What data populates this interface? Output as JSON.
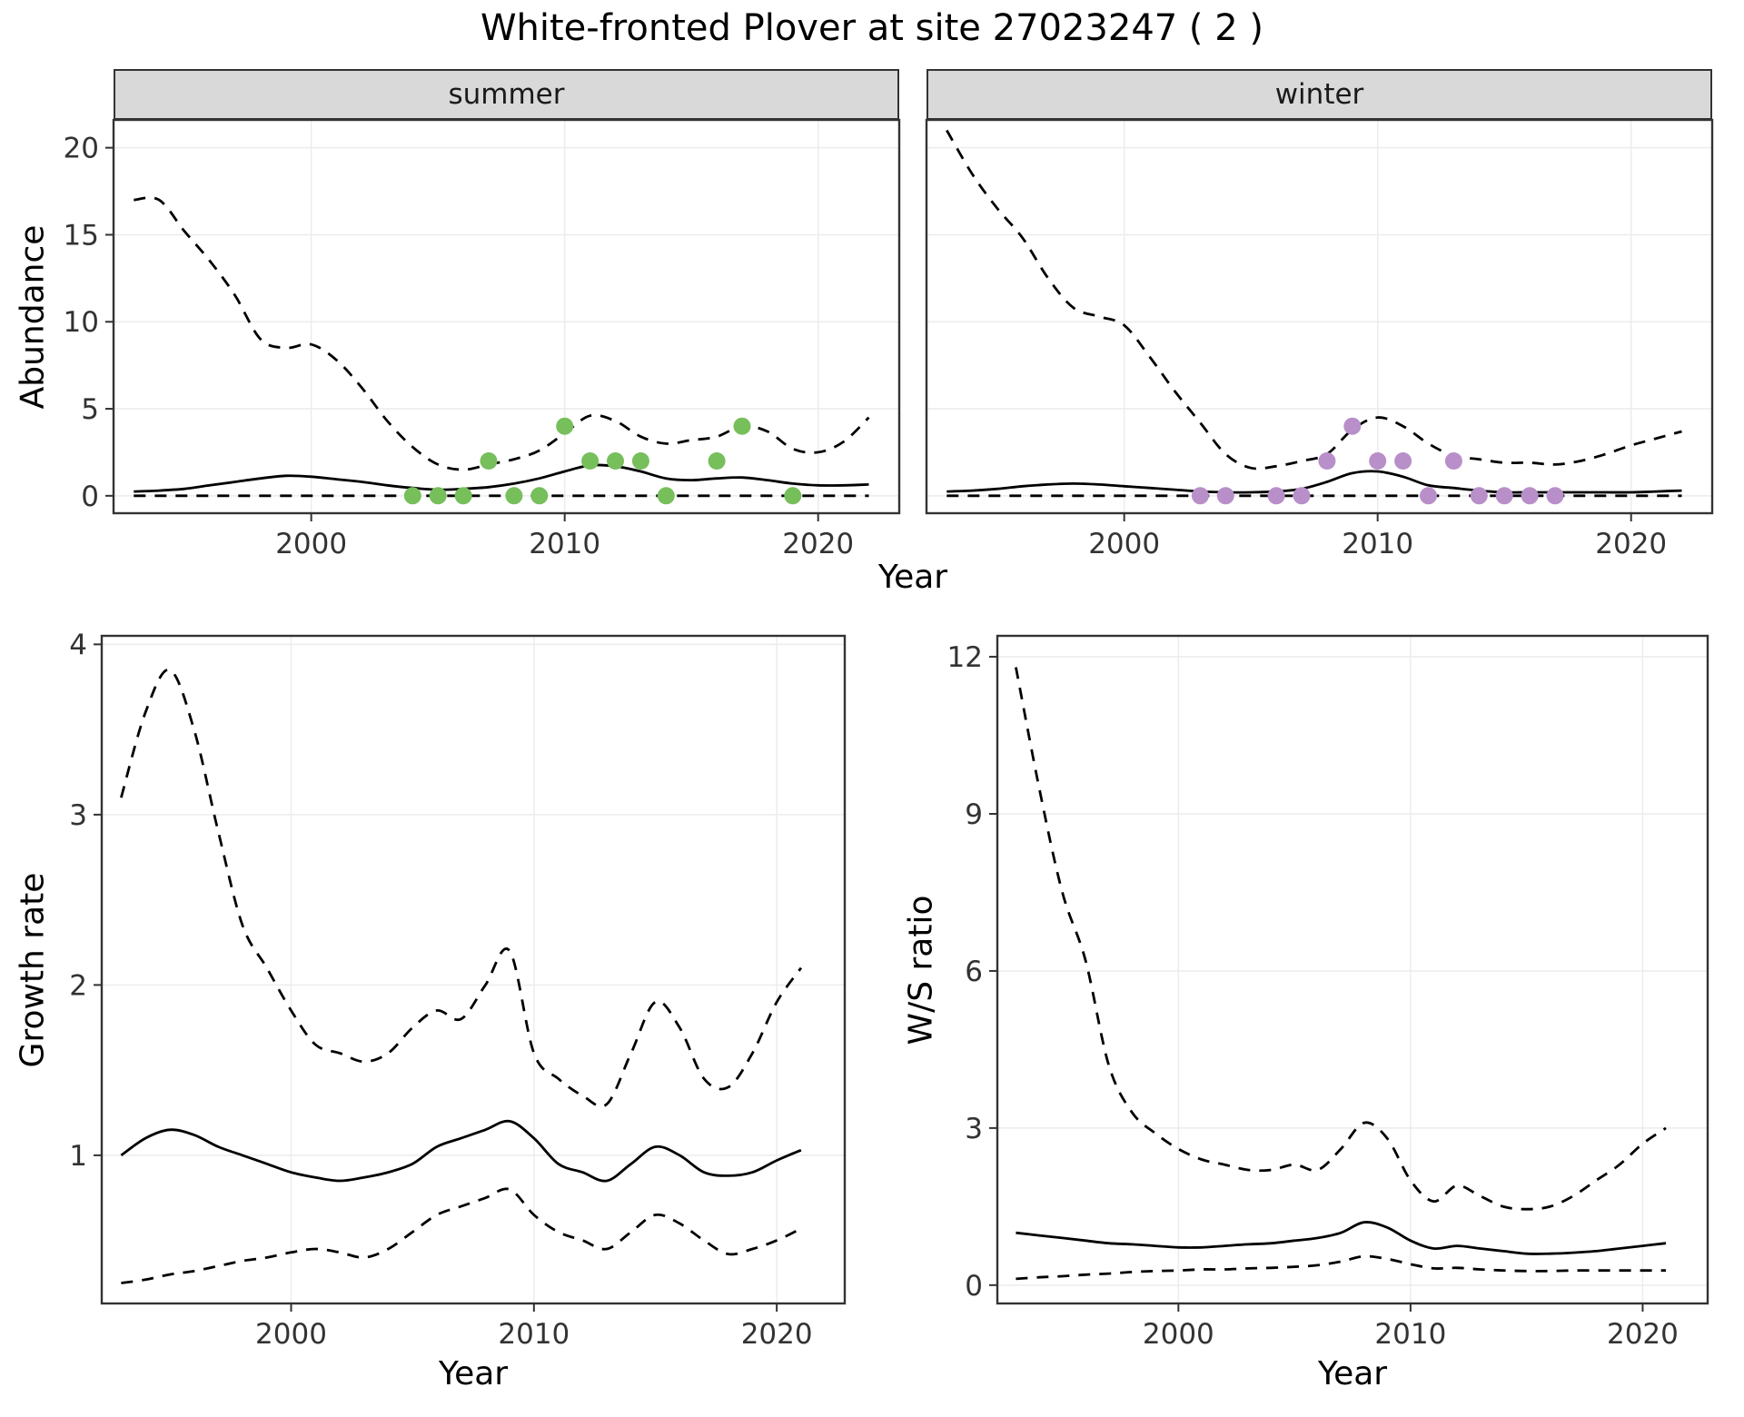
{
  "title": "White-fronted Plover at site 27023247 ( 2 )",
  "facets": {
    "summer": "summer",
    "winter": "winter"
  },
  "axis_labels": {
    "abundance": "Abundance",
    "year_top": "Year",
    "growth_rate": "Growth rate",
    "ws_ratio": "W/S ratio",
    "year_bottom_left": "Year",
    "year_bottom_right": "Year"
  },
  "colors": {
    "summer_point": "#76bf5b",
    "winter_point": "#b88fc9",
    "line": "#000000",
    "strip_bg": "#d9d9d9",
    "panel_border": "#333333",
    "grid": "#ececec",
    "tick_text": "#333333"
  },
  "chart_data": [
    {
      "id": "abundance-summer",
      "type": "line",
      "title": "summer",
      "xlabel": "Year",
      "ylabel": "Abundance",
      "xlim": [
        1992.2,
        2023.2
      ],
      "ylim": [
        -1,
        21.6
      ],
      "xticks": [
        2000,
        2010,
        2020
      ],
      "yticks": [
        0,
        5,
        10,
        15,
        20
      ],
      "x": [
        1993,
        1994,
        1995,
        1996,
        1997,
        1998,
        1999,
        2000,
        2001,
        2002,
        2003,
        2004,
        2005,
        2006,
        2007,
        2008,
        2009,
        2010,
        2011,
        2012,
        2013,
        2014,
        2015,
        2016,
        2017,
        2018,
        2019,
        2020,
        2021,
        2022
      ],
      "series": [
        {
          "name": "upper_ci",
          "style": "dashed",
          "values": [
            17.0,
            17.0,
            15.2,
            13.5,
            11.5,
            9.0,
            8.5,
            8.7,
            7.8,
            6.2,
            4.3,
            2.8,
            1.8,
            1.5,
            1.8,
            2.1,
            2.6,
            3.6,
            4.6,
            4.3,
            3.4,
            3.0,
            3.2,
            3.4,
            4.0,
            3.7,
            2.7,
            2.5,
            3.1,
            4.5
          ]
        },
        {
          "name": "mean",
          "style": "solid",
          "values": [
            0.25,
            0.3,
            0.4,
            0.6,
            0.8,
            1.0,
            1.15,
            1.1,
            0.95,
            0.8,
            0.6,
            0.45,
            0.35,
            0.4,
            0.5,
            0.7,
            1.0,
            1.4,
            1.75,
            1.7,
            1.4,
            1.0,
            0.9,
            1.0,
            1.05,
            0.9,
            0.7,
            0.6,
            0.6,
            0.65
          ]
        },
        {
          "name": "lower_ci",
          "style": "dashed",
          "values": [
            0,
            0,
            0,
            0,
            0,
            0,
            0,
            0,
            0,
            0,
            0,
            0,
            0,
            0,
            0,
            0,
            0,
            0,
            0,
            0,
            0,
            0,
            0,
            0,
            0,
            0,
            0,
            0,
            0,
            0
          ]
        }
      ],
      "points": {
        "name": "summer-observations",
        "color": "#76bf5b",
        "xy": [
          [
            2004,
            0
          ],
          [
            2005,
            0
          ],
          [
            2006,
            0
          ],
          [
            2007,
            2
          ],
          [
            2008,
            0
          ],
          [
            2009,
            0
          ],
          [
            2010,
            4
          ],
          [
            2011,
            2
          ],
          [
            2012,
            2
          ],
          [
            2013,
            2
          ],
          [
            2014,
            0
          ],
          [
            2016,
            2
          ],
          [
            2017,
            4
          ],
          [
            2019,
            0
          ]
        ]
      }
    },
    {
      "id": "abundance-winter",
      "type": "line",
      "title": "winter",
      "xlabel": "Year",
      "ylabel": "Abundance",
      "xlim": [
        1992.2,
        2023.2
      ],
      "ylim": [
        -1,
        21.6
      ],
      "xticks": [
        2000,
        2010,
        2020
      ],
      "yticks": [
        0,
        5,
        10,
        15,
        20
      ],
      "x": [
        1993,
        1994,
        1995,
        1996,
        1997,
        1998,
        1999,
        2000,
        2001,
        2002,
        2003,
        2004,
        2005,
        2006,
        2007,
        2008,
        2009,
        2010,
        2011,
        2012,
        2013,
        2014,
        2015,
        2016,
        2017,
        2018,
        2019,
        2020,
        2021,
        2022
      ],
      "series": [
        {
          "name": "upper_ci",
          "style": "dashed",
          "values": [
            21.0,
            18.5,
            16.5,
            14.8,
            12.5,
            10.8,
            10.3,
            9.8,
            8.0,
            6.0,
            4.2,
            2.4,
            1.6,
            1.7,
            2.0,
            2.4,
            3.8,
            4.5,
            4.0,
            3.0,
            2.3,
            2.1,
            1.9,
            1.9,
            1.8,
            2.0,
            2.4,
            2.9,
            3.3,
            3.7
          ]
        },
        {
          "name": "mean",
          "style": "solid",
          "values": [
            0.25,
            0.3,
            0.4,
            0.55,
            0.65,
            0.7,
            0.65,
            0.55,
            0.45,
            0.35,
            0.25,
            0.2,
            0.2,
            0.25,
            0.4,
            0.8,
            1.3,
            1.4,
            1.1,
            0.6,
            0.45,
            0.3,
            0.2,
            0.2,
            0.2,
            0.2,
            0.2,
            0.2,
            0.25,
            0.3
          ]
        },
        {
          "name": "lower_ci",
          "style": "dashed",
          "values": [
            0,
            0,
            0,
            0,
            0,
            0,
            0,
            0,
            0,
            0,
            0,
            0,
            0,
            0,
            0,
            0,
            0,
            0,
            0,
            0,
            0,
            0,
            0,
            0,
            0,
            0,
            0,
            0,
            0,
            0
          ]
        }
      ],
      "points": {
        "name": "winter-observations",
        "color": "#b88fc9",
        "xy": [
          [
            2003,
            0
          ],
          [
            2004,
            0
          ],
          [
            2006,
            0
          ],
          [
            2007,
            0
          ],
          [
            2008,
            2
          ],
          [
            2009,
            4
          ],
          [
            2010,
            2
          ],
          [
            2011,
            2
          ],
          [
            2012,
            0
          ],
          [
            2013,
            2
          ],
          [
            2014,
            0
          ],
          [
            2015,
            0
          ],
          [
            2016,
            0
          ],
          [
            2017,
            0
          ]
        ]
      }
    },
    {
      "id": "growth-rate",
      "type": "line",
      "title": "Growth rate",
      "xlabel": "Year",
      "ylabel": "Growth rate",
      "xlim": [
        1992.2,
        2022.8
      ],
      "ylim": [
        0.13,
        4.05
      ],
      "xticks": [
        2000,
        2010,
        2020
      ],
      "yticks": [
        1,
        2,
        3,
        4
      ],
      "x": [
        1993,
        1994,
        1995,
        1996,
        1997,
        1998,
        1999,
        2000,
        2001,
        2002,
        2003,
        2004,
        2005,
        2006,
        2007,
        2008,
        2009,
        2010,
        2011,
        2012,
        2013,
        2014,
        2015,
        2016,
        2017,
        2018,
        2019,
        2020,
        2021
      ],
      "series": [
        {
          "name": "upper_ci",
          "style": "dashed",
          "values": [
            3.1,
            3.6,
            3.85,
            3.5,
            2.9,
            2.35,
            2.1,
            1.85,
            1.65,
            1.6,
            1.55,
            1.6,
            1.75,
            1.85,
            1.8,
            2.0,
            2.2,
            1.6,
            1.45,
            1.35,
            1.3,
            1.6,
            1.9,
            1.75,
            1.45,
            1.4,
            1.6,
            1.9,
            2.1
          ]
        },
        {
          "name": "mean",
          "style": "solid",
          "values": [
            1.0,
            1.1,
            1.15,
            1.12,
            1.05,
            1.0,
            0.95,
            0.9,
            0.87,
            0.85,
            0.87,
            0.9,
            0.95,
            1.05,
            1.1,
            1.15,
            1.2,
            1.1,
            0.95,
            0.9,
            0.85,
            0.95,
            1.05,
            1.0,
            0.9,
            0.88,
            0.9,
            0.97,
            1.03
          ]
        },
        {
          "name": "lower_ci",
          "style": "dashed",
          "values": [
            0.25,
            0.27,
            0.3,
            0.32,
            0.35,
            0.38,
            0.4,
            0.43,
            0.45,
            0.43,
            0.4,
            0.45,
            0.55,
            0.65,
            0.7,
            0.75,
            0.8,
            0.65,
            0.55,
            0.5,
            0.45,
            0.55,
            0.65,
            0.6,
            0.5,
            0.42,
            0.45,
            0.5,
            0.57
          ]
        }
      ]
    },
    {
      "id": "ws-ratio",
      "type": "line",
      "title": "W/S ratio",
      "xlabel": "Year",
      "ylabel": "W/S ratio",
      "xlim": [
        1992.2,
        2022.8
      ],
      "ylim": [
        -0.35,
        12.4
      ],
      "xticks": [
        2000,
        2010,
        2020
      ],
      "yticks": [
        0,
        3,
        6,
        9,
        12
      ],
      "x": [
        1993,
        1994,
        1995,
        1996,
        1997,
        1998,
        1999,
        2000,
        2001,
        2002,
        2003,
        2004,
        2005,
        2006,
        2007,
        2008,
        2009,
        2010,
        2011,
        2012,
        2013,
        2014,
        2015,
        2016,
        2017,
        2018,
        2019,
        2020,
        2021
      ],
      "series": [
        {
          "name": "upper_ci",
          "style": "dashed",
          "values": [
            11.8,
            9.5,
            7.5,
            6.2,
            4.2,
            3.3,
            2.9,
            2.6,
            2.4,
            2.3,
            2.2,
            2.2,
            2.3,
            2.2,
            2.6,
            3.1,
            2.8,
            2.0,
            1.6,
            1.9,
            1.7,
            1.5,
            1.45,
            1.5,
            1.7,
            2.0,
            2.3,
            2.7,
            3.0
          ]
        },
        {
          "name": "mean",
          "style": "solid",
          "values": [
            1.0,
            0.95,
            0.9,
            0.85,
            0.8,
            0.78,
            0.75,
            0.72,
            0.72,
            0.75,
            0.78,
            0.8,
            0.85,
            0.9,
            1.0,
            1.2,
            1.1,
            0.85,
            0.7,
            0.75,
            0.7,
            0.65,
            0.6,
            0.6,
            0.62,
            0.65,
            0.7,
            0.75,
            0.8
          ]
        },
        {
          "name": "lower_ci",
          "style": "dashed",
          "values": [
            0.12,
            0.15,
            0.17,
            0.2,
            0.22,
            0.25,
            0.27,
            0.28,
            0.3,
            0.3,
            0.32,
            0.33,
            0.35,
            0.38,
            0.45,
            0.55,
            0.5,
            0.4,
            0.32,
            0.33,
            0.3,
            0.28,
            0.27,
            0.27,
            0.28,
            0.28,
            0.28,
            0.28,
            0.28
          ]
        }
      ]
    }
  ]
}
